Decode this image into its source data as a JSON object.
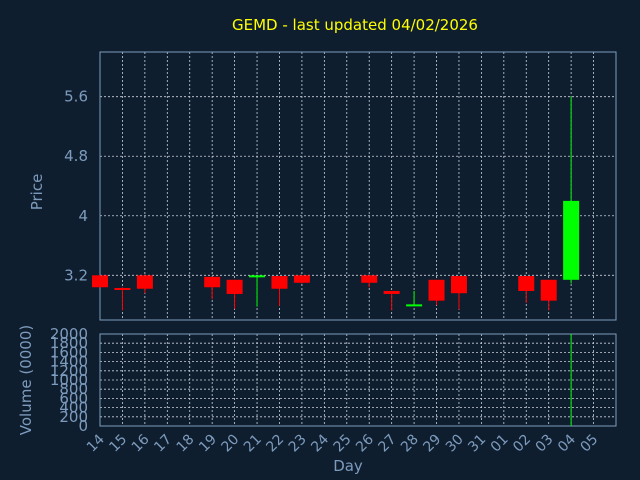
{
  "chart_data": {
    "type": "candlestick",
    "title": "GEMD - last updated 04/02/2026",
    "price_panel": {
      "ylabel": "Price",
      "ylim": [
        2.6,
        6.2
      ],
      "yticks": [
        "3.2",
        "4",
        "4.8",
        "5.6"
      ],
      "ytick_values": [
        3.2,
        4.0,
        4.8,
        5.6
      ]
    },
    "volume_panel": {
      "ylabel": "Volume (0000)",
      "ylim": [
        0,
        2000
      ],
      "yticks": [
        "0",
        "200",
        "400",
        "600",
        "800",
        "1000",
        "1200",
        "1400",
        "1600",
        "1800",
        "2000"
      ],
      "ytick_values": [
        0,
        200,
        400,
        600,
        800,
        1000,
        1200,
        1400,
        1600,
        1800,
        2000
      ]
    },
    "xlabel": "Day",
    "x_ticks": [
      "14",
      "15",
      "16",
      "17",
      "18",
      "19",
      "20",
      "21",
      "22",
      "23",
      "24",
      "25",
      "26",
      "27",
      "28",
      "29",
      "30",
      "31",
      "01",
      "02",
      "03",
      "04",
      "05"
    ],
    "candles": [
      {
        "day": "14",
        "open": 3.2,
        "high": 3.2,
        "low": 3.04,
        "close": 3.04
      },
      {
        "day": "15",
        "open": 3.03,
        "high": 3.04,
        "low": 2.73,
        "close": 3.01
      },
      {
        "day": "16",
        "open": 3.2,
        "high": 3.2,
        "low": 2.96,
        "close": 3.02
      },
      {
        "day": "19",
        "open": 3.18,
        "high": 3.18,
        "low": 2.88,
        "close": 3.04
      },
      {
        "day": "20",
        "open": 3.14,
        "high": 3.14,
        "low": 2.75,
        "close": 2.95
      },
      {
        "day": "21",
        "open": 3.19,
        "high": 3.2,
        "low": 2.78,
        "close": 3.2
      },
      {
        "day": "22",
        "open": 3.19,
        "high": 3.19,
        "low": 2.79,
        "close": 3.02
      },
      {
        "day": "23",
        "open": 3.2,
        "high": 3.2,
        "low": 3.09,
        "close": 3.1
      },
      {
        "day": "26",
        "open": 3.2,
        "high": 3.2,
        "low": 3.04,
        "close": 3.1
      },
      {
        "day": "27",
        "open": 2.99,
        "high": 2.99,
        "low": 2.73,
        "close": 2.95
      },
      {
        "day": "28",
        "open": 2.8,
        "high": 2.99,
        "low": 2.8,
        "close": 2.81
      },
      {
        "day": "29",
        "open": 3.14,
        "high": 3.14,
        "low": 2.8,
        "close": 2.86
      },
      {
        "day": "30",
        "open": 3.19,
        "high": 3.19,
        "low": 2.74,
        "close": 2.96
      },
      {
        "day": "02",
        "open": 3.19,
        "high": 3.19,
        "low": 2.83,
        "close": 2.99
      },
      {
        "day": "03",
        "open": 3.14,
        "high": 3.14,
        "low": 2.73,
        "close": 2.86
      },
      {
        "day": "04",
        "open": 3.14,
        "high": 5.6,
        "low": 3.09,
        "close": 4.2
      }
    ],
    "volume": [
      {
        "day": "04",
        "value": 2000
      }
    ],
    "colors": {
      "up": "#00ff00",
      "down": "#ff0000",
      "title": "#ffff00",
      "axis": "#7d9cbd",
      "background": "#0f1e2f"
    },
    "grid": true
  }
}
